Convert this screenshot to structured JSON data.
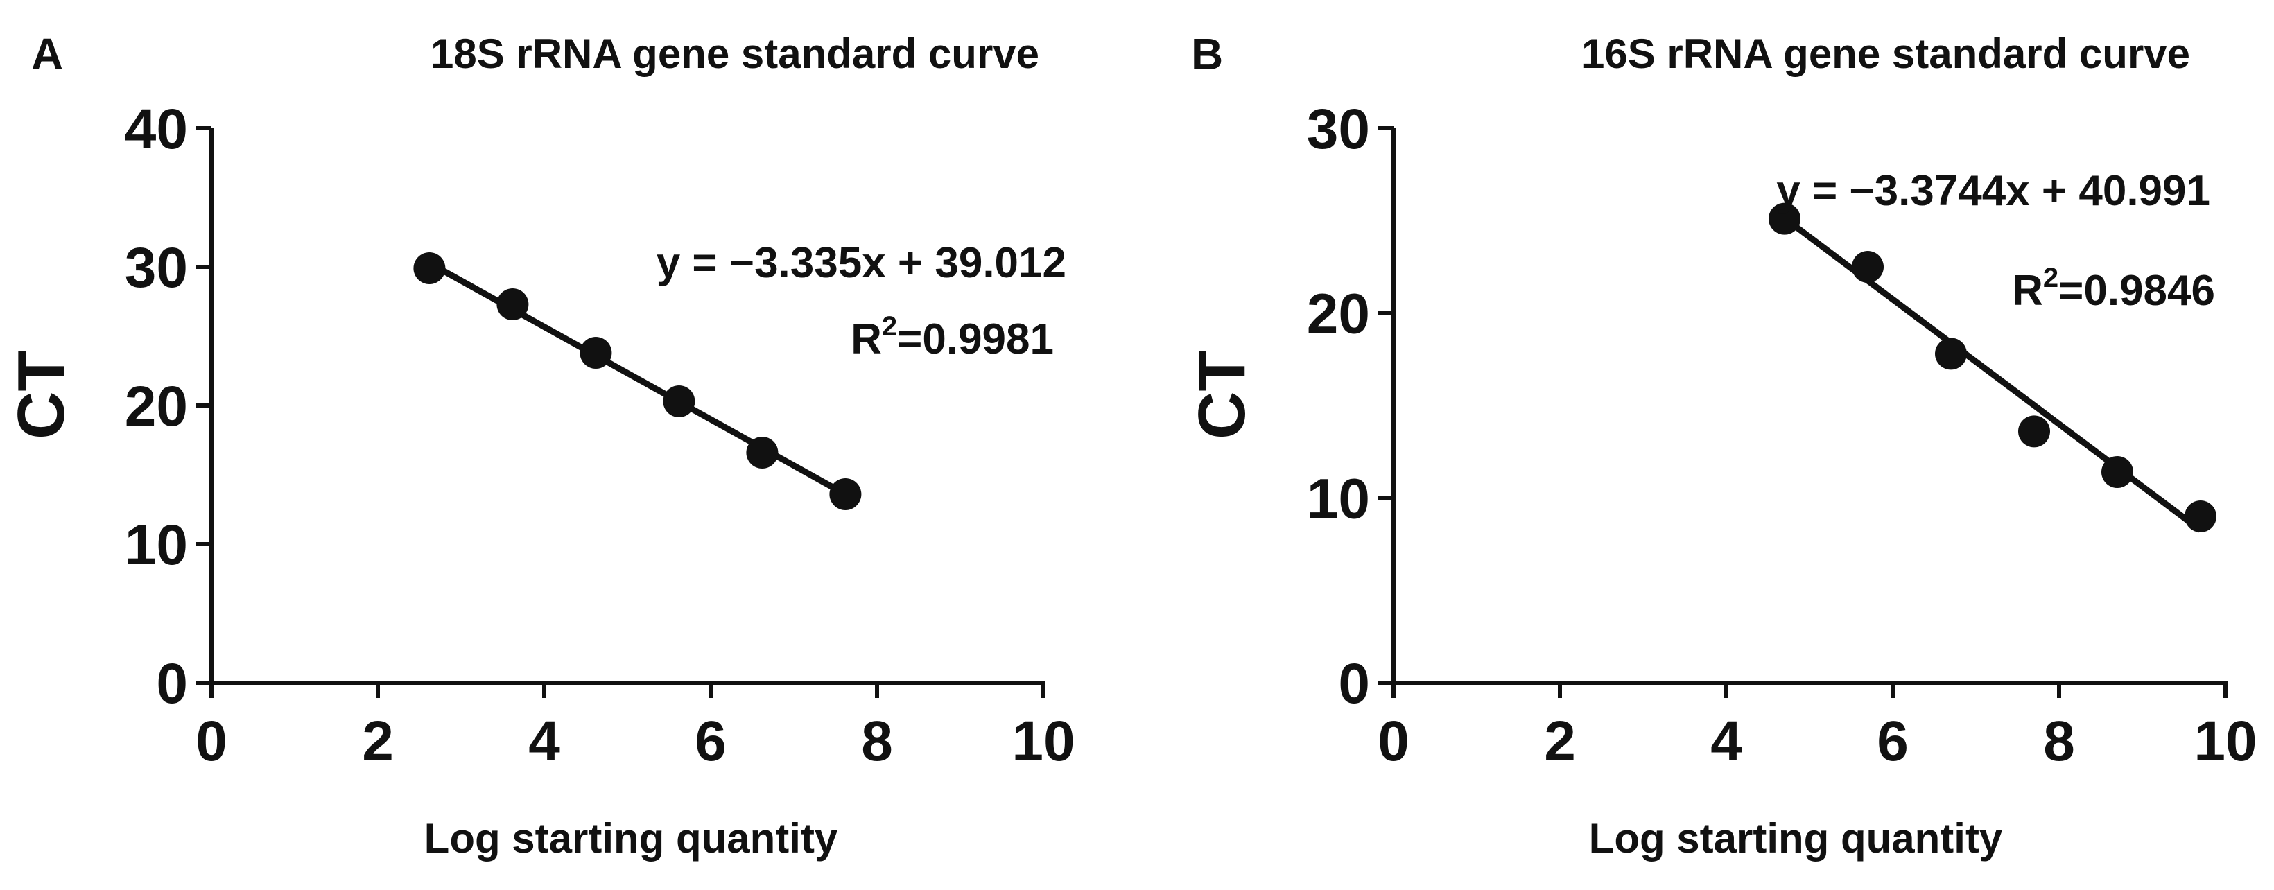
{
  "chart_data": [
    {
      "type": "scatter",
      "panel_label": "A",
      "title": "18S rRNA gene standard curve",
      "xlabel": "Log starting quantity",
      "ylabel": "CT",
      "xlim": [
        0,
        10
      ],
      "ylim": [
        0,
        40
      ],
      "xticks": [
        "0",
        "2",
        "4",
        "6",
        "8",
        "10"
      ],
      "yticks": [
        "0",
        "10",
        "20",
        "30",
        "40"
      ],
      "grid": false,
      "points": [
        {
          "x": 2.62,
          "y": 29.9
        },
        {
          "x": 3.62,
          "y": 27.3
        },
        {
          "x": 4.62,
          "y": 23.8
        },
        {
          "x": 5.62,
          "y": 20.3
        },
        {
          "x": 6.62,
          "y": 16.6
        },
        {
          "x": 7.62,
          "y": 13.6
        }
      ],
      "fit": {
        "slope": -3.335,
        "intercept": 39.012,
        "x_range": [
          2.62,
          7.62
        ]
      },
      "equation": "y = −3.335x + 39.012",
      "r2_prefix": "R",
      "r2_sup": "2",
      "r2_value": "=0.9981"
    },
    {
      "type": "scatter",
      "panel_label": "B",
      "title": "16S rRNA gene standard curve",
      "xlabel": "Log starting quantity",
      "ylabel": "CT",
      "xlim": [
        0,
        10
      ],
      "ylim": [
        0,
        30
      ],
      "xticks": [
        "0",
        "2",
        "4",
        "6",
        "8",
        "10"
      ],
      "yticks": [
        "0",
        "10",
        "20",
        "30"
      ],
      "grid": false,
      "points": [
        {
          "x": 4.7,
          "y": 25.1
        },
        {
          "x": 5.7,
          "y": 22.5
        },
        {
          "x": 6.7,
          "y": 17.8
        },
        {
          "x": 7.7,
          "y": 13.6
        },
        {
          "x": 8.7,
          "y": 11.4
        },
        {
          "x": 9.7,
          "y": 9.0
        }
      ],
      "fit": {
        "slope": -3.3744,
        "intercept": 40.991,
        "x_range": [
          4.7,
          9.7
        ]
      },
      "equation": "y = −3.3744x + 40.991",
      "r2_prefix": "R",
      "r2_sup": "2",
      "r2_value": "=0.9846"
    }
  ]
}
